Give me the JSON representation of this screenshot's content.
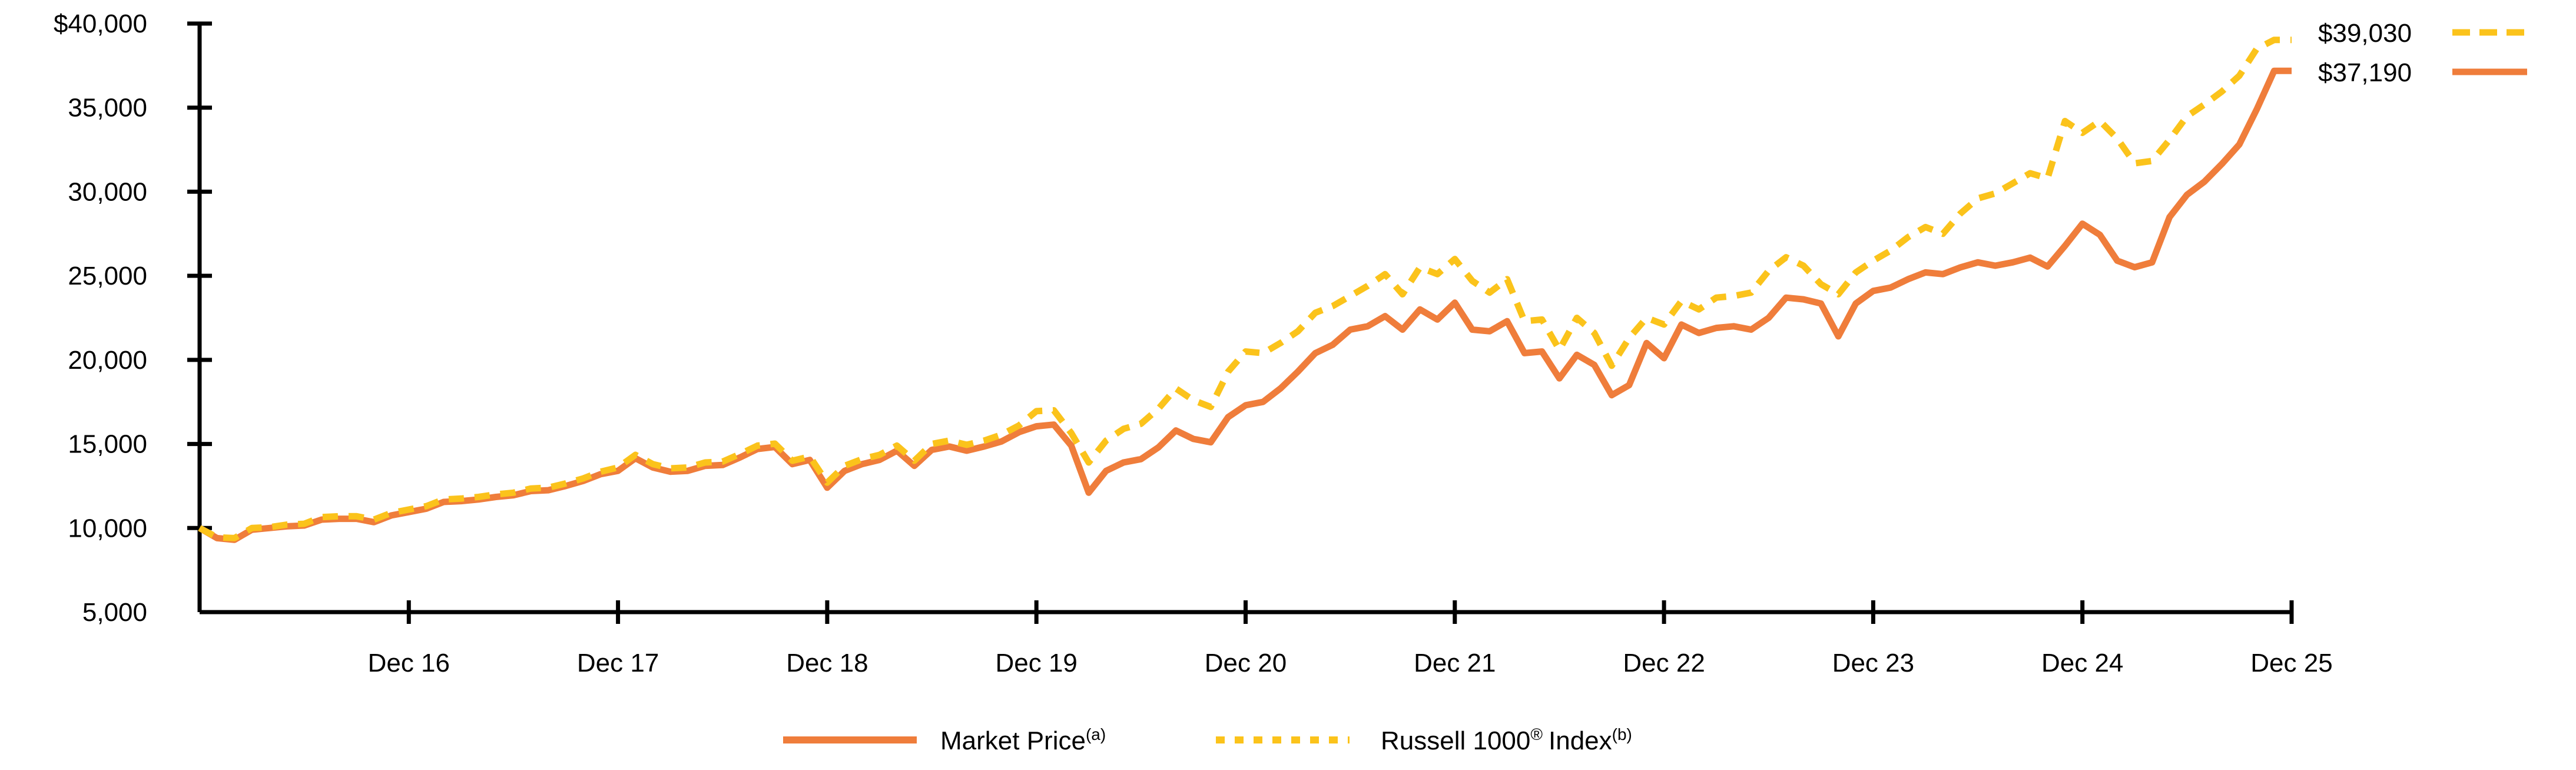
{
  "legend": {
    "market": {
      "label": "Market Price",
      "sup": "(a)"
    },
    "russell": {
      "name": "Russell 1000",
      "reg": "®",
      "rest": "Index",
      "sup": "(b)"
    }
  },
  "colors": {
    "background": "#FFFFFF",
    "axis": "#000000",
    "text": "#000000"
  },
  "chart_data": {
    "type": "line",
    "title": "",
    "xlabel": "",
    "ylabel": "",
    "grid": false,
    "legend_position": "bottom-center",
    "ylim": [
      5000,
      40000
    ],
    "y_ticks": {
      "labels": [
        "$40,000",
        "35,000",
        "30,000",
        "25,000",
        "20,000",
        "15,000",
        "10,000",
        "5,000"
      ],
      "values": [
        40000,
        35000,
        30000,
        25000,
        20000,
        15000,
        10000,
        5000
      ]
    },
    "x_tick_labels": [
      "Dec 16",
      "Dec 17",
      "Dec 18",
      "Dec 19",
      "Dec 20",
      "Dec 21",
      "Dec 22",
      "Dec 23",
      "Dec 24",
      "Dec 25"
    ],
    "x_tick_month_indices": [
      12,
      24,
      36,
      48,
      60,
      72,
      84,
      96,
      108,
      120
    ],
    "x_description": "121 monthly points from Dec 2015 (index 0, $10,000 start) to Dec 2025 (index 120); values estimated from plot",
    "series": [
      {
        "name": "Market Price",
        "superscript": "(a)",
        "style": "solid",
        "color": "#EF7D3B",
        "end_label": "$37,190",
        "final_value": 37190,
        "values": [
          10000,
          9400,
          9300,
          9900,
          10000,
          10100,
          10150,
          10500,
          10550,
          10550,
          10350,
          10750,
          10950,
          11150,
          11550,
          11600,
          11700,
          11850,
          11950,
          12200,
          12250,
          12500,
          12800,
          13200,
          13400,
          14150,
          13600,
          13350,
          13400,
          13700,
          13750,
          14200,
          14700,
          14820,
          13800,
          14050,
          12400,
          13400,
          13800,
          14050,
          14600,
          13700,
          14650,
          14850,
          14600,
          14850,
          15150,
          15700,
          16050,
          16150,
          14900,
          12100,
          13400,
          13900,
          14100,
          14800,
          15800,
          15300,
          15100,
          16600,
          17300,
          17500,
          18300,
          19300,
          20400,
          20900,
          21800,
          22000,
          22600,
          21800,
          23000,
          22400,
          23400,
          21800,
          21700,
          22300,
          20400,
          20500,
          18900,
          20300,
          19700,
          17900,
          18500,
          21000,
          20100,
          22100,
          21600,
          21900,
          22000,
          21800,
          22500,
          23700,
          23600,
          23350,
          21400,
          23350,
          24100,
          24300,
          24800,
          25200,
          25100,
          25500,
          25800,
          25600,
          25800,
          26080,
          25550,
          26780,
          28100,
          27440,
          25900,
          25510,
          25800,
          28490,
          29820,
          30600,
          31650,
          32810,
          34900,
          37190,
          37190
        ]
      },
      {
        "name": "Russell 1000® Index",
        "superscript": "(b)",
        "style": "dashed",
        "color": "#FBC31B",
        "end_label": "$39,030",
        "final_value": 39030,
        "values": [
          10000,
          9450,
          9400,
          10000,
          10050,
          10200,
          10250,
          10650,
          10700,
          10700,
          10500,
          10900,
          11100,
          11300,
          11700,
          11750,
          11850,
          12000,
          12100,
          12350,
          12400,
          12650,
          12950,
          13350,
          13600,
          14350,
          13800,
          13550,
          13600,
          13900,
          13950,
          14400,
          14900,
          15020,
          14000,
          14250,
          12700,
          13700,
          14100,
          14350,
          14900,
          14000,
          15000,
          15200,
          14950,
          15200,
          15550,
          16100,
          16950,
          17000,
          15650,
          13900,
          15200,
          15900,
          16200,
          17100,
          18300,
          17600,
          17200,
          19300,
          20500,
          20400,
          21000,
          21700,
          22800,
          23200,
          23800,
          24400,
          25100,
          23900,
          25500,
          25100,
          26000,
          24700,
          24000,
          24800,
          22300,
          22400,
          20600,
          22500,
          21600,
          19650,
          21300,
          22500,
          22100,
          23500,
          23000,
          23700,
          23800,
          24000,
          25300,
          26100,
          25600,
          24500,
          23900,
          25200,
          25900,
          26500,
          27300,
          27900,
          27500,
          28700,
          29600,
          29900,
          30500,
          31100,
          30800,
          34200,
          33500,
          34210,
          33160,
          31690,
          31830,
          33090,
          34490,
          35190,
          35960,
          36900,
          38500,
          39030,
          39030
        ]
      }
    ]
  }
}
